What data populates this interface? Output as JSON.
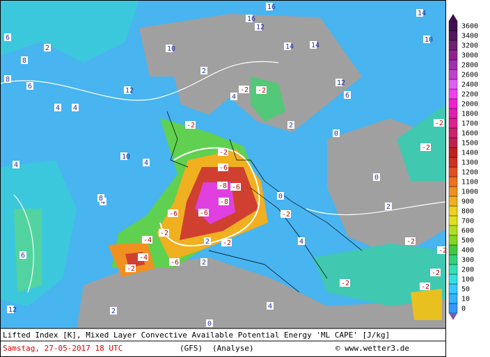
{
  "legend": {
    "levels": [
      0,
      10,
      50,
      100,
      200,
      300,
      400,
      500,
      600,
      700,
      800,
      900,
      1000,
      1100,
      1200,
      1300,
      1400,
      1500,
      1600,
      1700,
      1800,
      2000,
      2200,
      2400,
      2600,
      2800,
      3000,
      3200,
      3400,
      3600
    ]
  },
  "footer": {
    "title": "Lifted Index [K], Mixed Layer Convective Available Potential Energy 'ML CAPE' [J/kg]",
    "date": "Samstag, 27-05-2017  18 UTC",
    "model": "(GFS)",
    "run": "(Analyse)",
    "source": "© www.wetter3.de"
  },
  "contour_labels": [
    6,
    8,
    8,
    2,
    6,
    4,
    12,
    16,
    16,
    12,
    14,
    14,
    14,
    10,
    2,
    12,
    10,
    4,
    4,
    4,
    -2,
    -2,
    -2,
    4,
    2,
    6,
    -2,
    -6,
    -8,
    -6,
    -6,
    -8,
    -4,
    -2,
    -2,
    -2,
    -6,
    -4,
    -2,
    -6,
    -2,
    -2,
    2,
    2,
    0,
    4,
    4,
    2,
    0,
    0,
    0,
    -2,
    -2,
    -2,
    -2,
    -2,
    8,
    12,
    4,
    6,
    10,
    2
  ]
}
